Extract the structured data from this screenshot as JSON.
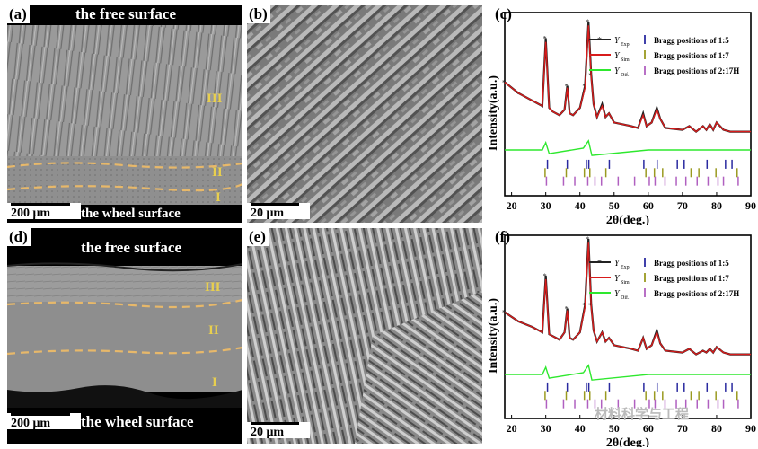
{
  "panels": {
    "a": {
      "label": "(a)",
      "top_text": "the free surface",
      "bottom_text": "the wheel surface",
      "scale": "200 μm",
      "zones": [
        "III",
        "II",
        "I"
      ]
    },
    "b": {
      "label": "(b)",
      "scale": "20 μm"
    },
    "c": {
      "label": "(c)"
    },
    "d": {
      "label": "(d)",
      "top_text": "the free surface",
      "bottom_text": "the wheel surface",
      "scale": "200 μm",
      "zones": [
        "III",
        "II",
        "I"
      ]
    },
    "e": {
      "label": "(e)",
      "scale": "20 μm"
    },
    "f": {
      "label": "(f)"
    }
  },
  "legend": {
    "exp": "Y",
    "exp_sub": "Exp.",
    "sim": "Y",
    "sim_sub": "Sim.",
    "dif": "Y",
    "dif_sub": "Dif.",
    "bragg15": "Bragg positions of 1:5",
    "bragg17": "Bragg positions of 1:7",
    "bragg217": "Bragg positions of 2:17H"
  },
  "colors": {
    "exp": "#222222",
    "sim": "#d81b1b",
    "dif": "#2ee82e",
    "b15": "#2a2aa0",
    "b17": "#9a9a20",
    "b217": "#b060c0",
    "zone": "#e8cf4e"
  },
  "watermark": "材料科学与工程",
  "chart_data": [
    {
      "type": "line",
      "ylabel": "Intensity(a.u.)",
      "xlabel": "2θ(deg.)",
      "xlim": [
        18,
        90
      ],
      "xticks": [
        20,
        30,
        40,
        50,
        60,
        70,
        80,
        90
      ],
      "series": [
        {
          "name": "Y Exp.",
          "x": [
            18,
            22,
            26,
            28,
            29,
            30,
            31,
            32,
            34,
            35.5,
            36.3,
            37,
            38,
            40,
            41.5,
            42.5,
            43.3,
            44,
            45,
            46.5,
            47.5,
            48.5,
            50,
            55,
            57,
            58.5,
            59.5,
            61,
            62.5,
            63.5,
            65,
            70,
            72,
            74,
            76,
            77,
            78,
            79,
            80,
            82,
            84,
            86,
            88,
            90
          ],
          "y": [
            0.62,
            0.56,
            0.52,
            0.5,
            0.49,
            0.86,
            0.48,
            0.46,
            0.44,
            0.47,
            0.6,
            0.45,
            0.44,
            0.48,
            0.6,
            0.95,
            0.66,
            0.5,
            0.43,
            0.5,
            0.43,
            0.45,
            0.4,
            0.38,
            0.37,
            0.45,
            0.38,
            0.4,
            0.48,
            0.42,
            0.37,
            0.36,
            0.38,
            0.35,
            0.38,
            0.36,
            0.39,
            0.36,
            0.4,
            0.36,
            0.35,
            0.35,
            0.35,
            0.35
          ]
        },
        {
          "name": "Y Sim.",
          "x": [
            18,
            22,
            26,
            28,
            29,
            30,
            31,
            32,
            34,
            35.5,
            36.3,
            37,
            38,
            40,
            41.5,
            42.5,
            43.3,
            44,
            45,
            46.5,
            47.5,
            48.5,
            50,
            55,
            57,
            58.5,
            59.5,
            61,
            62.5,
            63.5,
            65,
            70,
            72,
            74,
            76,
            77,
            78,
            79,
            80,
            82,
            84,
            86,
            88,
            90
          ],
          "y": [
            0.62,
            0.56,
            0.52,
            0.5,
            0.49,
            0.84,
            0.48,
            0.46,
            0.44,
            0.47,
            0.59,
            0.45,
            0.44,
            0.48,
            0.59,
            0.93,
            0.65,
            0.5,
            0.43,
            0.49,
            0.43,
            0.45,
            0.4,
            0.38,
            0.37,
            0.44,
            0.38,
            0.4,
            0.47,
            0.42,
            0.37,
            0.36,
            0.38,
            0.35,
            0.38,
            0.36,
            0.39,
            0.36,
            0.4,
            0.36,
            0.35,
            0.35,
            0.35,
            0.35
          ]
        },
        {
          "name": "Y Dif.",
          "x": [
            18,
            29,
            30,
            31,
            41,
            42.5,
            43.5,
            60,
            90
          ],
          "y": [
            0.25,
            0.25,
            0.29,
            0.23,
            0.26,
            0.3,
            0.22,
            0.25,
            0.25
          ]
        }
      ],
      "bragg": {
        "1:5": [
          30.5,
          36.3,
          41.9,
          42.6,
          48.6,
          58.7,
          62.6,
          68.5,
          70.5,
          77.2,
          82.6,
          84.5
        ],
        "1:7": [
          29.8,
          36.0,
          41.3,
          42.9,
          47.6,
          59.3,
          61.8,
          64.2,
          72.5,
          74.8,
          79.8,
          86.0
        ],
        "2:17H": [
          30.2,
          35.2,
          38.5,
          42.3,
          44.4,
          46.3,
          51.2,
          56.0,
          60.3,
          62.0,
          64.9,
          68.2,
          71.0,
          74.3,
          77.5,
          80.4,
          82.0,
          86.3
        ]
      }
    },
    {
      "type": "line",
      "ylabel": "Intensity(a.u.)",
      "xlabel": "2θ(deg.)",
      "xlim": [
        18,
        90
      ],
      "xticks": [
        20,
        30,
        40,
        50,
        60,
        70,
        80,
        90
      ],
      "series": [
        {
          "name": "Y Exp.",
          "x": [
            18,
            22,
            26,
            28,
            29,
            30,
            31,
            32,
            34,
            35.5,
            36.3,
            37,
            38,
            40,
            41.5,
            42.5,
            43.3,
            44,
            45,
            46.5,
            47.5,
            48.5,
            50,
            55,
            57,
            58.5,
            59.5,
            61,
            62.5,
            63.5,
            65,
            70,
            72,
            74,
            76,
            77,
            78,
            79,
            80,
            82,
            84,
            86,
            88,
            90
          ],
          "y": [
            0.58,
            0.53,
            0.5,
            0.48,
            0.47,
            0.78,
            0.46,
            0.45,
            0.43,
            0.47,
            0.6,
            0.44,
            0.43,
            0.47,
            0.62,
            0.98,
            0.62,
            0.48,
            0.42,
            0.47,
            0.42,
            0.44,
            0.4,
            0.38,
            0.37,
            0.44,
            0.38,
            0.4,
            0.48,
            0.41,
            0.37,
            0.36,
            0.38,
            0.35,
            0.37,
            0.36,
            0.38,
            0.36,
            0.39,
            0.36,
            0.35,
            0.35,
            0.35,
            0.35
          ]
        },
        {
          "name": "Y Sim.",
          "x": [
            18,
            22,
            26,
            28,
            29,
            30,
            31,
            32,
            34,
            35.5,
            36.3,
            37,
            38,
            40,
            41.5,
            42.5,
            43.3,
            44,
            45,
            46.5,
            47.5,
            48.5,
            50,
            55,
            57,
            58.5,
            59.5,
            61,
            62.5,
            63.5,
            65,
            70,
            72,
            74,
            76,
            77,
            78,
            79,
            80,
            82,
            84,
            86,
            88,
            90
          ],
          "y": [
            0.58,
            0.53,
            0.5,
            0.48,
            0.47,
            0.76,
            0.46,
            0.45,
            0.43,
            0.47,
            0.59,
            0.44,
            0.43,
            0.47,
            0.61,
            0.96,
            0.61,
            0.48,
            0.42,
            0.47,
            0.42,
            0.44,
            0.4,
            0.38,
            0.37,
            0.44,
            0.38,
            0.4,
            0.47,
            0.41,
            0.37,
            0.36,
            0.38,
            0.35,
            0.37,
            0.36,
            0.38,
            0.36,
            0.39,
            0.36,
            0.35,
            0.35,
            0.35,
            0.35
          ]
        },
        {
          "name": "Y Dif.",
          "x": [
            18,
            29,
            30,
            31,
            41,
            42.5,
            43.5,
            60,
            90
          ],
          "y": [
            0.24,
            0.24,
            0.28,
            0.22,
            0.25,
            0.29,
            0.21,
            0.24,
            0.24
          ]
        }
      ],
      "bragg": {
        "1:5": [
          30.5,
          36.3,
          41.9,
          42.6,
          48.6,
          58.7,
          62.6,
          68.5,
          70.5,
          77.2,
          82.6,
          84.5
        ],
        "1:7": [
          29.8,
          36.0,
          41.3,
          42.9,
          47.6,
          59.3,
          61.8,
          64.2,
          72.5,
          74.8,
          79.8,
          86.0
        ],
        "2:17H": [
          30.2,
          35.2,
          38.5,
          42.3,
          44.4,
          46.3,
          51.2,
          56.0,
          60.3,
          62.0,
          64.9,
          68.2,
          71.0,
          74.3,
          77.5,
          80.4,
          82.0,
          86.3
        ]
      }
    }
  ]
}
